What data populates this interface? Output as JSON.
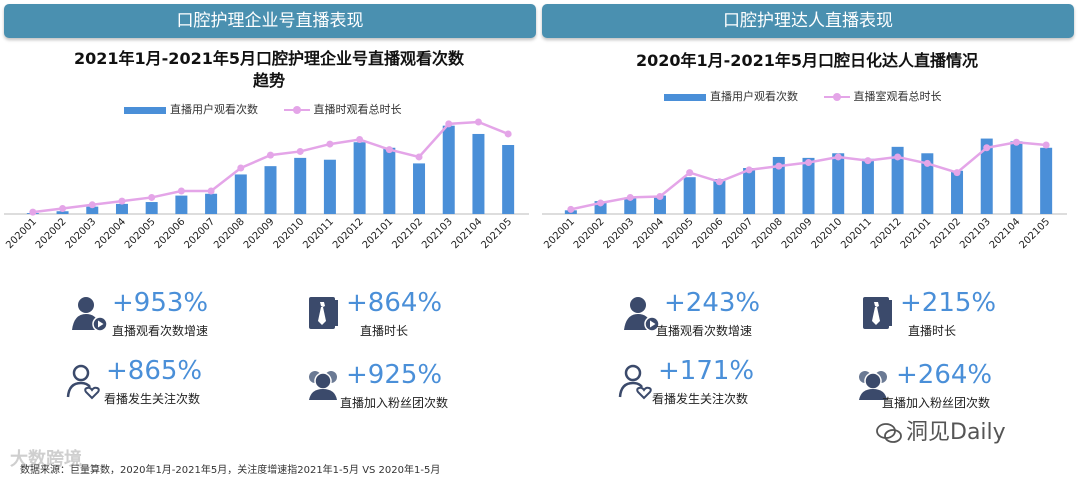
{
  "left": {
    "banner": "口腔护理企业号直播表现",
    "title_line1": "2021年1月-2021年5月口腔护理企业号直播观看次数",
    "title_line2": "趋势",
    "legend_bar": "直播用户观看次数",
    "legend_line": "直播时观看总时长",
    "stats": [
      {
        "value": "+953%",
        "label": "直播观看次数增速",
        "icon": "viewer-play-icon"
      },
      {
        "value": "+864%",
        "label": "直播时长",
        "icon": "tie-book-icon"
      },
      {
        "value": "+865%",
        "label": "看播发生关注次数",
        "icon": "person-heart-icon"
      },
      {
        "value": "+925%",
        "label": "直播加入粉丝团次数",
        "icon": "group-icon"
      }
    ]
  },
  "right": {
    "banner": "口腔护理达人直播表现",
    "title": "2020年1月-2021年5月口腔日化达人直播情况",
    "legend_bar": "直播用户观看次数",
    "legend_line": "直播室观看总时长",
    "stats": [
      {
        "value": "+243%",
        "label": "直播观看次数增速",
        "icon": "viewer-play-icon"
      },
      {
        "value": "+215%",
        "label": "直播时长",
        "icon": "tie-book-icon"
      },
      {
        "value": "+171%",
        "label": "看播发生关注次数",
        "icon": "person-heart-icon"
      },
      {
        "value": "+264%",
        "label": "直播加入粉丝团次数",
        "icon": "group-icon"
      }
    ]
  },
  "colors": {
    "banner": "#4a90b0",
    "bar": "#4a8fd8",
    "line": "#e4a5e8",
    "stat": "#4a8fd8",
    "icon": "#3b4a6b"
  },
  "source": "数据来源：巨量算数，2020年1月-2021年5月，关注度增速指2021年1-5月 VS 2020年1-5月",
  "watermark_left": "大数跨境",
  "watermark_right": "洞见Daily",
  "chart_data": [
    {
      "type": "bar",
      "title": "2021年1月-2021年5月口腔护理企业号直播观看次数趋势",
      "categories": [
        "202001",
        "202002",
        "202003",
        "202004",
        "202005",
        "202006",
        "202007",
        "202008",
        "202009",
        "202010",
        "202011",
        "202012",
        "202101",
        "202102",
        "202103",
        "202104",
        "202105"
      ],
      "series": [
        {
          "name": "直播用户观看次数",
          "kind": "bar",
          "values": [
            1,
            3,
            8,
            11,
            13,
            20,
            22,
            43,
            52,
            61,
            59,
            78,
            72,
            55,
            96,
            87,
            75
          ]
        },
        {
          "name": "直播时观看总时长",
          "kind": "line",
          "values": [
            2,
            6,
            10,
            14,
            18,
            25,
            25,
            50,
            64,
            68,
            76,
            81,
            70,
            62,
            98,
            100,
            87
          ]
        }
      ],
      "ylim": [
        0,
        100
      ]
    },
    {
      "type": "bar",
      "title": "2020年1月-2021年5月口腔日化达人直播情况",
      "categories": [
        "202001",
        "202002",
        "202003",
        "202004",
        "202005",
        "202006",
        "202007",
        "202008",
        "202009",
        "202010",
        "202011",
        "202012",
        "202101",
        "202102",
        "202103",
        "202104",
        "202105"
      ],
      "series": [
        {
          "name": "直播用户观看次数",
          "kind": "bar",
          "values": [
            4,
            14,
            18,
            20,
            40,
            38,
            50,
            62,
            61,
            66,
            60,
            73,
            66,
            47,
            82,
            79,
            72
          ]
        },
        {
          "name": "直播室观看总时长",
          "kind": "line",
          "values": [
            5,
            12,
            18,
            19,
            45,
            35,
            48,
            52,
            56,
            62,
            58,
            62,
            55,
            45,
            72,
            78,
            75
          ]
        }
      ],
      "ylim": [
        0,
        100
      ]
    }
  ]
}
